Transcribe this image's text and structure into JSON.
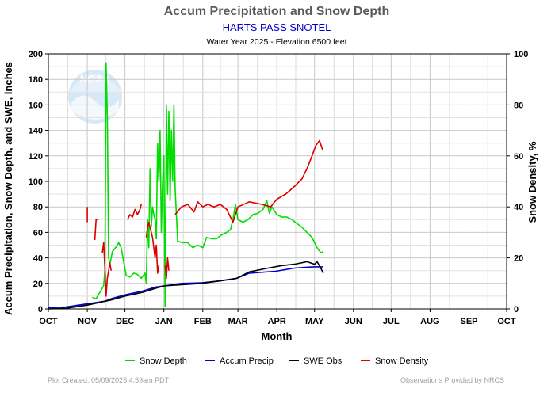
{
  "chart_data": {
    "type": "line",
    "title": "Accum Precipitation and Snow Depth",
    "subtitle": "HARTS PASS SNOTEL",
    "subtitle2": "Water Year 2025 -  Elevation 6500 feet",
    "xlabel": "Month",
    "ylabel": "Accum Precipitation, Snow Depth, and SWE, inches",
    "ylabel_right": "Snow Density, %",
    "x_ticks": [
      "OCT",
      "NOV",
      "DEC",
      "JAN",
      "FEB",
      "MAR",
      "APR",
      "MAY",
      "JUN",
      "JUL",
      "AUG",
      "SEP",
      "OCT"
    ],
    "y_ticks": [
      "0",
      "20",
      "40",
      "60",
      "80",
      "100",
      "120",
      "140",
      "160",
      "180",
      "200"
    ],
    "y_ticks_right": [
      "0",
      "20",
      "40",
      "60",
      "80",
      "100"
    ],
    "ylim": [
      0,
      200
    ],
    "ylim_right": [
      0,
      100
    ],
    "grid": true,
    "legend_position": "bottom",
    "footer_left": "Plot Created: 05/09/2025 4:59am PDT",
    "footer_right": "Observations Provided by NRCS",
    "logo_text": "NOAA",
    "series": [
      {
        "name": "Snow Depth",
        "color": "#00dd00",
        "axis": "left",
        "points": [
          [
            "2024-11-05",
            9
          ],
          [
            "2024-11-08",
            8
          ],
          [
            "2024-11-14",
            18
          ],
          [
            "2024-11-15",
            30
          ],
          [
            "2024-11-16",
            193
          ],
          [
            "2024-11-17",
            150
          ],
          [
            "2024-11-18",
            40
          ],
          [
            "2024-11-19",
            35
          ],
          [
            "2024-11-20",
            40
          ],
          [
            "2024-11-21",
            45
          ],
          [
            "2024-11-25",
            50
          ],
          [
            "2024-11-26",
            52
          ],
          [
            "2024-11-28",
            48
          ],
          [
            "2024-12-02",
            26
          ],
          [
            "2024-12-05",
            25
          ],
          [
            "2024-12-08",
            28
          ],
          [
            "2024-12-11",
            27
          ],
          [
            "2024-12-14",
            24
          ],
          [
            "2024-12-17",
            28
          ],
          [
            "2024-12-18",
            20
          ],
          [
            "2024-12-19",
            70
          ],
          [
            "2024-12-20",
            48
          ],
          [
            "2024-12-21",
            110
          ],
          [
            "2024-12-22",
            65
          ],
          [
            "2024-12-23",
            80
          ],
          [
            "2024-12-24",
            74
          ],
          [
            "2024-12-25",
            70
          ],
          [
            "2024-12-26",
            55
          ],
          [
            "2024-12-27",
            130
          ],
          [
            "2024-12-28",
            100
          ],
          [
            "2024-12-29",
            140
          ],
          [
            "2024-12-30",
            60
          ],
          [
            "2024-12-31",
            100
          ],
          [
            "2025-01-01",
            120
          ],
          [
            "2025-01-02",
            2
          ],
          [
            "2025-01-03",
            160
          ],
          [
            "2025-01-04",
            90
          ],
          [
            "2025-01-05",
            155
          ],
          [
            "2025-01-06",
            85
          ],
          [
            "2025-01-07",
            140
          ],
          [
            "2025-01-08",
            100
          ],
          [
            "2025-01-09",
            160
          ],
          [
            "2025-01-10",
            95
          ],
          [
            "2025-01-12",
            53
          ],
          [
            "2025-01-16",
            52
          ],
          [
            "2025-01-20",
            52
          ],
          [
            "2025-01-24",
            48
          ],
          [
            "2025-01-28",
            50
          ],
          [
            "2025-02-01",
            48
          ],
          [
            "2025-02-04",
            56
          ],
          [
            "2025-02-08",
            55
          ],
          [
            "2025-02-12",
            55
          ],
          [
            "2025-02-16",
            58
          ],
          [
            "2025-02-20",
            60
          ],
          [
            "2025-02-23",
            62
          ],
          [
            "2025-02-25",
            70
          ],
          [
            "2025-02-27",
            82
          ],
          [
            "2025-03-01",
            70
          ],
          [
            "2025-03-05",
            68
          ],
          [
            "2025-03-09",
            70
          ],
          [
            "2025-03-13",
            74
          ],
          [
            "2025-03-17",
            75
          ],
          [
            "2025-03-21",
            78
          ],
          [
            "2025-03-24",
            85
          ],
          [
            "2025-03-26",
            75
          ],
          [
            "2025-03-28",
            80
          ],
          [
            "2025-04-01",
            74
          ],
          [
            "2025-04-05",
            72
          ],
          [
            "2025-04-09",
            72
          ],
          [
            "2025-04-13",
            70
          ],
          [
            "2025-04-17",
            67
          ],
          [
            "2025-04-21",
            64
          ],
          [
            "2025-04-25",
            60
          ],
          [
            "2025-04-29",
            56
          ],
          [
            "2025-05-03",
            48
          ],
          [
            "2025-05-06",
            44
          ],
          [
            "2025-05-08",
            45
          ]
        ]
      },
      {
        "name": "Accum Precip",
        "color": "#0000cc",
        "axis": "left",
        "points": [
          [
            "2024-10-01",
            1
          ],
          [
            "2024-10-15",
            1.5
          ],
          [
            "2024-11-01",
            4
          ],
          [
            "2024-11-15",
            6
          ],
          [
            "2024-11-20",
            8
          ],
          [
            "2024-12-01",
            11
          ],
          [
            "2024-12-15",
            14
          ],
          [
            "2024-12-25",
            17
          ],
          [
            "2025-01-01",
            18
          ],
          [
            "2025-01-15",
            20
          ],
          [
            "2025-01-31",
            20.5
          ],
          [
            "2025-02-15",
            22
          ],
          [
            "2025-02-28",
            24
          ],
          [
            "2025-03-10",
            28
          ],
          [
            "2025-03-31",
            29.5
          ],
          [
            "2025-04-15",
            32
          ],
          [
            "2025-04-30",
            33
          ],
          [
            "2025-05-08",
            33
          ]
        ]
      },
      {
        "name": "SWE Obs",
        "color": "#000000",
        "axis": "left",
        "points": [
          [
            "2024-10-01",
            0
          ],
          [
            "2024-10-15",
            0.5
          ],
          [
            "2024-11-01",
            3
          ],
          [
            "2024-11-15",
            6
          ],
          [
            "2024-11-20",
            7
          ],
          [
            "2024-12-01",
            10
          ],
          [
            "2024-12-15",
            13
          ],
          [
            "2024-12-25",
            16
          ],
          [
            "2025-01-01",
            18
          ],
          [
            "2025-01-15",
            19
          ],
          [
            "2025-01-31",
            20
          ],
          [
            "2025-02-15",
            22
          ],
          [
            "2025-02-28",
            24
          ],
          [
            "2025-03-10",
            29
          ],
          [
            "2025-03-25",
            32
          ],
          [
            "2025-04-05",
            34
          ],
          [
            "2025-04-15",
            35
          ],
          [
            "2025-04-25",
            37
          ],
          [
            "2025-05-01",
            35
          ],
          [
            "2025-05-03",
            37
          ],
          [
            "2025-05-06",
            32
          ],
          [
            "2025-05-08",
            28
          ]
        ]
      },
      {
        "name": "Snow Density",
        "color": "#dd0000",
        "axis": "right",
        "points": [
          [
            "2024-11-01",
            34
          ],
          [
            "2024-11-01",
            40
          ],
          null,
          [
            "2024-11-07",
            27
          ],
          [
            "2024-11-08",
            35
          ],
          [
            "2024-11-09",
            35
          ],
          null,
          [
            "2024-11-13",
            22
          ],
          [
            "2024-11-14",
            26
          ],
          [
            "2024-11-15",
            16
          ],
          [
            "2024-11-16",
            5
          ],
          [
            "2024-11-17",
            12
          ],
          [
            "2024-11-19",
            18
          ],
          [
            "2024-11-20",
            15
          ],
          null,
          [
            "2024-12-03",
            35
          ],
          [
            "2024-12-05",
            37
          ],
          [
            "2024-12-07",
            36
          ],
          [
            "2024-12-09",
            39
          ],
          [
            "2024-12-11",
            37
          ],
          [
            "2024-12-13",
            39
          ],
          [
            "2024-12-14",
            41
          ],
          null,
          [
            "2024-12-18",
            28
          ],
          [
            "2024-12-19",
            32
          ],
          [
            "2024-12-20",
            34
          ],
          [
            "2024-12-21",
            32
          ],
          [
            "2024-12-23",
            28
          ],
          [
            "2024-12-25",
            20
          ],
          [
            "2024-12-26",
            25
          ],
          [
            "2024-12-27",
            14
          ],
          [
            "2024-12-28",
            17
          ],
          null,
          [
            "2025-01-02",
            17
          ],
          [
            "2025-01-03",
            12
          ],
          [
            "2025-01-04",
            20
          ],
          [
            "2025-01-05",
            15
          ],
          null,
          [
            "2025-01-10",
            37
          ],
          [
            "2025-01-15",
            40
          ],
          [
            "2025-01-20",
            41
          ],
          [
            "2025-01-25",
            38
          ],
          [
            "2025-01-28",
            42
          ],
          [
            "2025-02-01",
            40
          ],
          [
            "2025-02-05",
            41
          ],
          [
            "2025-02-10",
            40
          ],
          [
            "2025-02-15",
            41
          ],
          [
            "2025-02-20",
            39
          ],
          [
            "2025-02-25",
            34
          ],
          [
            "2025-03-01",
            40
          ],
          [
            "2025-03-10",
            42
          ],
          [
            "2025-03-20",
            41
          ],
          [
            "2025-03-27",
            40
          ],
          [
            "2025-04-01",
            43
          ],
          [
            "2025-04-08",
            45
          ],
          [
            "2025-04-15",
            48
          ],
          [
            "2025-04-21",
            51
          ],
          [
            "2025-04-25",
            55
          ],
          [
            "2025-04-29",
            60
          ],
          [
            "2025-05-02",
            64
          ],
          [
            "2025-05-05",
            66
          ],
          [
            "2025-05-07",
            63
          ],
          [
            "2025-05-08",
            62
          ]
        ]
      }
    ]
  }
}
